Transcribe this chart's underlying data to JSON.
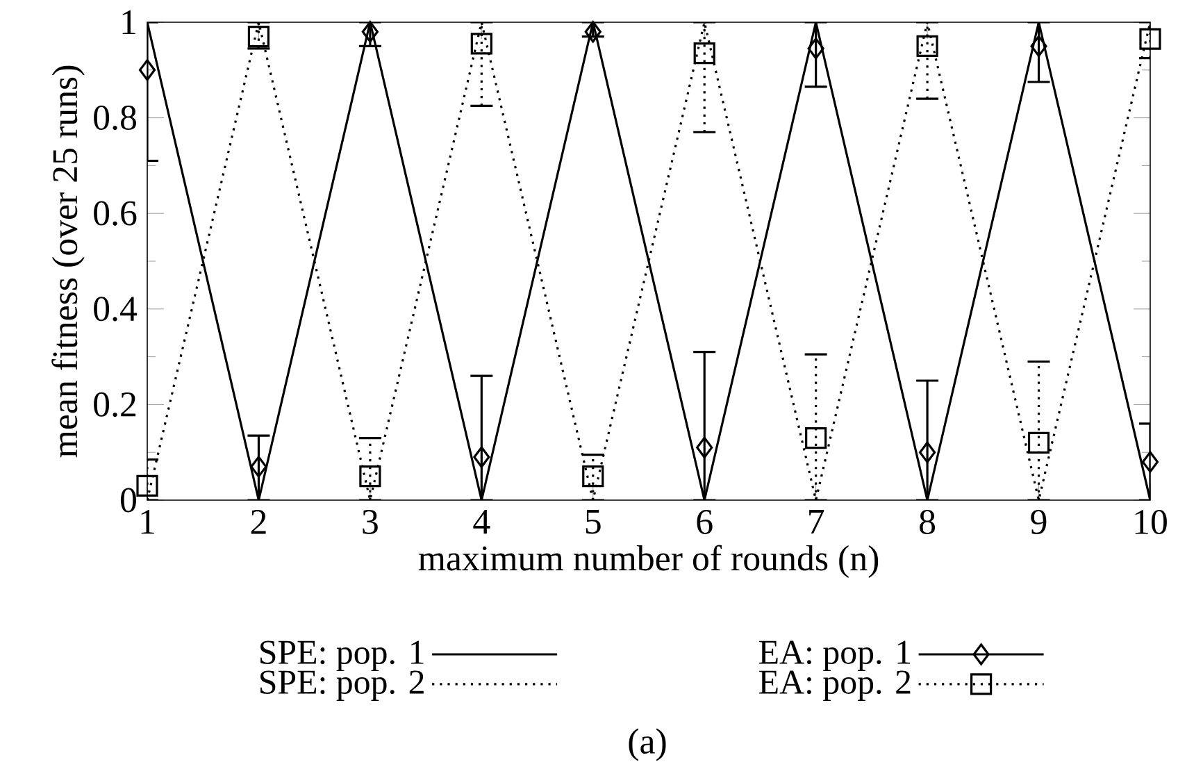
{
  "chart_data": {
    "type": "line",
    "xlabel": "maximum number of rounds (n)",
    "ylabel": "mean fitness (over 25 runs)",
    "x": [
      1,
      2,
      3,
      4,
      5,
      6,
      7,
      8,
      9,
      10
    ],
    "xlim": [
      1,
      10
    ],
    "xticks": [
      1,
      2,
      3,
      4,
      5,
      6,
      7,
      8,
      9,
      10
    ],
    "ylim": [
      0,
      1
    ],
    "yticks": [
      0,
      0.2,
      0.4,
      0.6,
      0.8,
      1
    ],
    "legend": "bottom",
    "grid": false,
    "series": [
      {
        "name": "SPE: pop. 1",
        "color": "#000000",
        "line_style": "solid",
        "marker": "none",
        "values": [
          1,
          0,
          1,
          0,
          1,
          0,
          1,
          0,
          1,
          0
        ]
      },
      {
        "name": "SPE: pop. 2",
        "color": "#000000",
        "line_style": "dotted",
        "marker": "none",
        "values": [
          0,
          1,
          0,
          1,
          0,
          1,
          0,
          1,
          0,
          1
        ]
      },
      {
        "name": "EA: pop. 1",
        "type": "scatter",
        "color": "#000000",
        "line_style": "solid",
        "marker": "diamond",
        "values": [
          0.9,
          0.07,
          0.98,
          0.09,
          0.98,
          0.11,
          0.945,
          0.1,
          0.95,
          0.08
        ],
        "errors": [
          [
            0.71,
            1
          ],
          [
            0,
            0.135
          ],
          [
            0.95,
            1
          ],
          [
            0,
            0.26
          ],
          [
            0.97,
            1
          ],
          [
            0,
            0.31
          ],
          [
            0.865,
            1
          ],
          [
            0,
            0.25
          ],
          [
            0.875,
            1
          ],
          [
            0,
            0.16
          ]
        ]
      },
      {
        "name": "EA: pop. 2",
        "type": "scatter",
        "color": "#000000",
        "line_style": "dotted",
        "marker": "square",
        "values": [
          0.03,
          0.97,
          0.05,
          0.955,
          0.05,
          0.935,
          0.13,
          0.95,
          0.12,
          0.965
        ],
        "errors": [
          [
            0,
            0.085
          ],
          [
            0.945,
            1
          ],
          [
            0,
            0.13
          ],
          [
            0.825,
            1
          ],
          [
            0,
            0.095
          ],
          [
            0.77,
            1
          ],
          [
            0,
            0.305
          ],
          [
            0.84,
            1
          ],
          [
            0,
            0.29
          ],
          [
            0.925,
            1
          ]
        ]
      }
    ],
    "annotations": [
      "(a)"
    ]
  }
}
